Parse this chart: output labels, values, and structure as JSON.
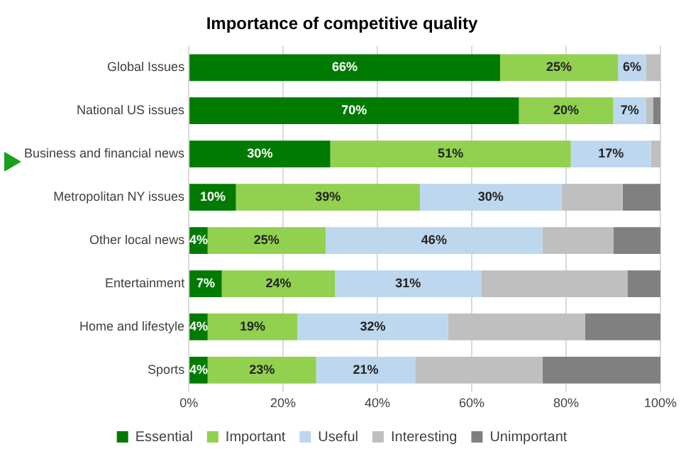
{
  "chart_data": {
    "type": "bar",
    "orientation": "horizontal",
    "stacked": true,
    "title": "Importance of competitive quality",
    "categories": [
      "Global Issues",
      "National US issues",
      "Business and financial news",
      "Metropolitan NY issues",
      "Other local news",
      "Entertainment",
      "Home and lifestyle",
      "Sports"
    ],
    "series": [
      {
        "name": "Essential",
        "color": "#007a00",
        "values": [
          66,
          70,
          30,
          10,
          4,
          7,
          4,
          4
        ],
        "value_labels": [
          "66%",
          "70%",
          "30%",
          "10%",
          "4%",
          "7%",
          "4%",
          "4%"
        ]
      },
      {
        "name": "Important",
        "color": "#92d050",
        "values": [
          25,
          20,
          51,
          39,
          25,
          24,
          19,
          23
        ],
        "value_labels": [
          "25%",
          "20%",
          "51%",
          "39%",
          "25%",
          "24%",
          "19%",
          "23%"
        ]
      },
      {
        "name": "Useful",
        "color": "#bdd7ee",
        "values": [
          6,
          7,
          17,
          30,
          46,
          31,
          32,
          21
        ],
        "value_labels": [
          "6%",
          "7%",
          "17%",
          "30%",
          "46%",
          "31%",
          "32%",
          "21%"
        ]
      },
      {
        "name": "Interesting",
        "color": "#bfbfbf",
        "values": [
          3,
          1.5,
          2,
          13,
          15,
          31,
          29,
          27
        ]
      },
      {
        "name": "Unimportant",
        "color": "#808080",
        "values": [
          0,
          1.5,
          0,
          8,
          10,
          7,
          16,
          25
        ]
      }
    ],
    "xlim": [
      0,
      100
    ],
    "xticks": [
      {
        "value": 0,
        "label": "0%"
      },
      {
        "value": 20,
        "label": "20%"
      },
      {
        "value": 40,
        "label": "40%"
      },
      {
        "value": 60,
        "label": "60%"
      },
      {
        "value": 80,
        "label": "80%"
      },
      {
        "value": 100,
        "label": "100%"
      }
    ],
    "grid": "x",
    "legend": "bottom"
  }
}
